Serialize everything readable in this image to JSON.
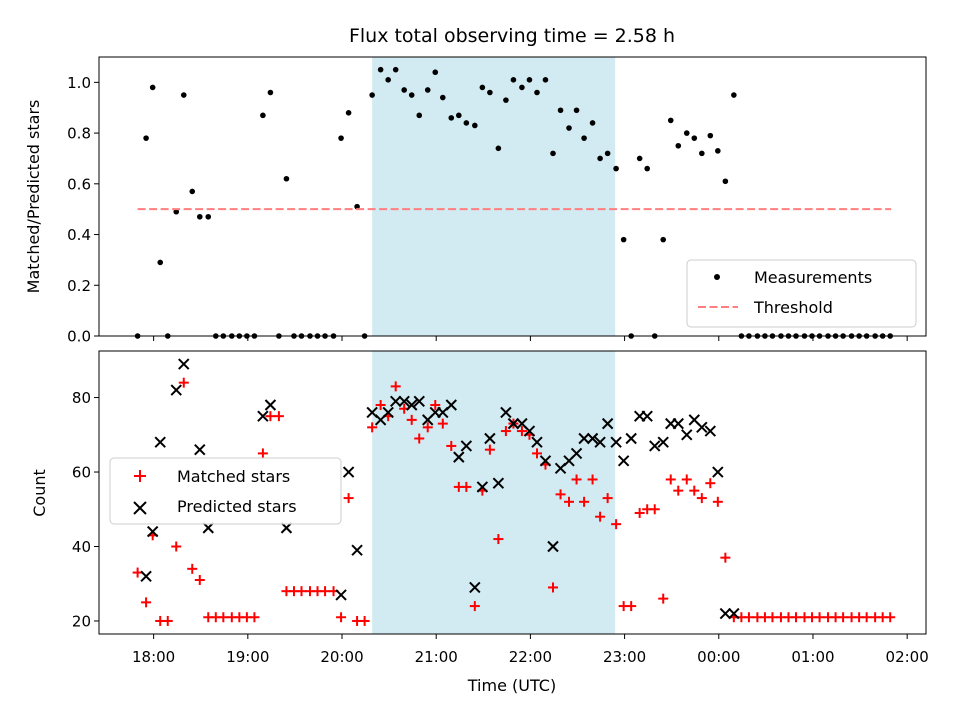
{
  "chart_data": {
    "title": "Flux total observing time = 2.58 h",
    "xlabel": "Time (UTC)",
    "x_ticks": [
      "18:00",
      "19:00",
      "20:00",
      "21:00",
      "22:00",
      "23:00",
      "00:00",
      "01:00",
      "02:00"
    ],
    "x_tick_hours": [
      18,
      19,
      20,
      21,
      22,
      23,
      24,
      25,
      26
    ],
    "xlim_hours": [
      17.42,
      26.2
    ],
    "shaded_span_hours": [
      20.32,
      22.9
    ],
    "shade_color": "#add8e6",
    "panels": [
      {
        "type": "scatter",
        "ylabel": "Matched/Predicted stars",
        "ylim": [
          0,
          1.1
        ],
        "y_ticks": [
          0.0,
          0.2,
          0.4,
          0.6,
          0.8,
          1.0
        ],
        "y_tick_labels": [
          "0.0",
          "0.2",
          "0.4",
          "0.6",
          "0.8",
          "1.0"
        ],
        "legend_position": "lower-right",
        "series": [
          {
            "name": "Measurements",
            "marker": "dot",
            "color": "#000000",
            "x": [
              17.83,
              17.92,
              17.99,
              18.07,
              18.15,
              18.24,
              18.32,
              18.41,
              18.49,
              18.58,
              18.66,
              18.74,
              18.83,
              18.91,
              18.99,
              19.07,
              19.16,
              19.24,
              19.33,
              19.41,
              19.49,
              19.57,
              19.66,
              19.74,
              19.82,
              19.91,
              19.99,
              20.07,
              20.16,
              20.24,
              20.32,
              20.41,
              20.49,
              20.57,
              20.66,
              20.74,
              20.82,
              20.91,
              20.99,
              21.07,
              21.16,
              21.24,
              21.32,
              21.41,
              21.49,
              21.57,
              21.66,
              21.74,
              21.82,
              21.91,
              21.99,
              22.07,
              22.16,
              22.24,
              22.32,
              22.41,
              22.49,
              22.57,
              22.66,
              22.74,
              22.82,
              22.91,
              22.99,
              23.07,
              23.16,
              23.24,
              23.32,
              23.41,
              23.49,
              23.57,
              23.66,
              23.74,
              23.82,
              23.91,
              23.99,
              24.07,
              24.16,
              24.24,
              24.32,
              24.41,
              24.49,
              24.57,
              24.66,
              24.74,
              24.82,
              24.91,
              24.99,
              25.07,
              25.16,
              25.24,
              25.32,
              25.41,
              25.49,
              25.57,
              25.66,
              25.74,
              25.82
            ],
            "y": [
              0.0,
              0.78,
              0.98,
              0.29,
              0.0,
              0.49,
              0.95,
              0.57,
              0.47,
              0.47,
              0.0,
              0.0,
              0.0,
              0.0,
              0.0,
              0.0,
              0.87,
              0.96,
              0.0,
              0.62,
              0.0,
              0.0,
              0.0,
              0.0,
              0.0,
              0.0,
              0.78,
              0.88,
              0.51,
              0.0,
              0.95,
              1.05,
              1.01,
              1.05,
              0.97,
              0.95,
              0.87,
              0.97,
              1.04,
              0.94,
              0.86,
              0.87,
              0.84,
              0.83,
              0.98,
              0.96,
              0.74,
              0.93,
              1.01,
              0.98,
              1.01,
              0.96,
              1.01,
              0.72,
              0.89,
              0.82,
              0.89,
              0.78,
              0.84,
              0.7,
              0.72,
              0.66,
              0.38,
              0.0,
              0.7,
              0.66,
              0.0,
              0.38,
              0.85,
              0.75,
              0.8,
              0.78,
              0.72,
              0.79,
              0.73,
              0.61,
              0.95,
              0.0,
              0.0,
              0.0,
              0.0,
              0.0,
              0.0,
              0.0,
              0.0,
              0.0,
              0.0,
              0.0,
              0.0,
              0.0,
              0.0,
              0.0,
              0.0,
              0.0,
              0.0,
              0.0,
              0.0
            ]
          },
          {
            "name": "Threshold",
            "marker": "dashed-line",
            "color": "#ff7f7f",
            "x": [
              17.83,
              25.83
            ],
            "y": [
              0.5,
              0.5
            ]
          }
        ]
      },
      {
        "type": "scatter",
        "ylabel": "Count",
        "ylim": [
          16.5,
          92.5
        ],
        "y_ticks": [
          20,
          40,
          60,
          80
        ],
        "y_tick_labels": [
          "20",
          "40",
          "60",
          "80"
        ],
        "legend_position": "center-left",
        "series": [
          {
            "name": "Matched stars",
            "marker": "plus",
            "color": "#ff0000",
            "x": [
              17.83,
              17.92,
              17.99,
              18.07,
              18.15,
              18.24,
              18.32,
              18.41,
              18.49,
              18.58,
              18.66,
              18.74,
              18.83,
              18.91,
              18.99,
              19.07,
              19.16,
              19.24,
              19.33,
              19.41,
              19.49,
              19.57,
              19.66,
              19.74,
              19.82,
              19.91,
              19.99,
              20.07,
              20.16,
              20.24,
              20.32,
              20.41,
              20.49,
              20.57,
              20.66,
              20.74,
              20.82,
              20.91,
              20.99,
              21.07,
              21.16,
              21.24,
              21.32,
              21.41,
              21.49,
              21.57,
              21.66,
              21.74,
              21.82,
              21.91,
              21.99,
              22.07,
              22.16,
              22.24,
              22.32,
              22.41,
              22.49,
              22.57,
              22.66,
              22.74,
              22.82,
              22.91,
              22.99,
              23.07,
              23.16,
              23.24,
              23.32,
              23.41,
              23.49,
              23.57,
              23.66,
              23.74,
              23.82,
              23.91,
              23.99,
              24.07,
              24.16,
              24.24,
              24.32,
              24.41,
              24.49,
              24.57,
              24.66,
              24.74,
              24.82,
              24.91,
              24.99,
              25.07,
              25.16,
              25.24,
              25.32,
              25.41,
              25.49,
              25.57,
              25.66,
              25.74,
              25.82
            ],
            "y": [
              33,
              25,
              43,
              20,
              20,
              40,
              84,
              34,
              31,
              21,
              21,
              21,
              21,
              21,
              21,
              21,
              65,
              75,
              75,
              28,
              28,
              28,
              28,
              28,
              28,
              28,
              21,
              53,
              20,
              20,
              72,
              78,
              75,
              83,
              77,
              74,
              69,
              72,
              78,
              73,
              67,
              56,
              56,
              24,
              55,
              66,
              42,
              71,
              73,
              71,
              70,
              65,
              62,
              29,
              54,
              52,
              58,
              52,
              58,
              48,
              53,
              46,
              24,
              24,
              49,
              50,
              50,
              26,
              58,
              55,
              58,
              55,
              53,
              57,
              52,
              37,
              21,
              21,
              21,
              21,
              21,
              21,
              21,
              21,
              21,
              21,
              21,
              21,
              21,
              21,
              21,
              21,
              21,
              21,
              21,
              21,
              21
            ]
          },
          {
            "name": "Predicted stars",
            "marker": "x",
            "color": "#000000",
            "x": [
              17.92,
              17.99,
              18.07,
              18.24,
              18.32,
              18.49,
              18.58,
              19.16,
              19.24,
              19.41,
              19.99,
              20.07,
              20.16,
              20.32,
              20.41,
              20.49,
              20.57,
              20.66,
              20.74,
              20.82,
              20.91,
              20.99,
              21.07,
              21.16,
              21.24,
              21.32,
              21.41,
              21.49,
              21.57,
              21.66,
              21.74,
              21.82,
              21.91,
              21.99,
              22.07,
              22.16,
              22.24,
              22.32,
              22.41,
              22.49,
              22.57,
              22.66,
              22.74,
              22.82,
              22.91,
              22.99,
              23.07,
              23.16,
              23.24,
              23.32,
              23.41,
              23.49,
              23.57,
              23.66,
              23.74,
              23.82,
              23.91,
              23.99,
              24.07,
              24.16
            ],
            "y": [
              32,
              44,
              68,
              82,
              89,
              66,
              45,
              75,
              78,
              45,
              27,
              60,
              39,
              76,
              74,
              76,
              79,
              79,
              78,
              79,
              74,
              76,
              76,
              78,
              64,
              67,
              29,
              56,
              69,
              57,
              76,
              73,
              73,
              71,
              68,
              63,
              40,
              61,
              63,
              65,
              69,
              69,
              68,
              73,
              68,
              63,
              69,
              75,
              75,
              67,
              68,
              73,
              73,
              70,
              74,
              72,
              71,
              60,
              22,
              22
            ]
          }
        ]
      }
    ]
  }
}
